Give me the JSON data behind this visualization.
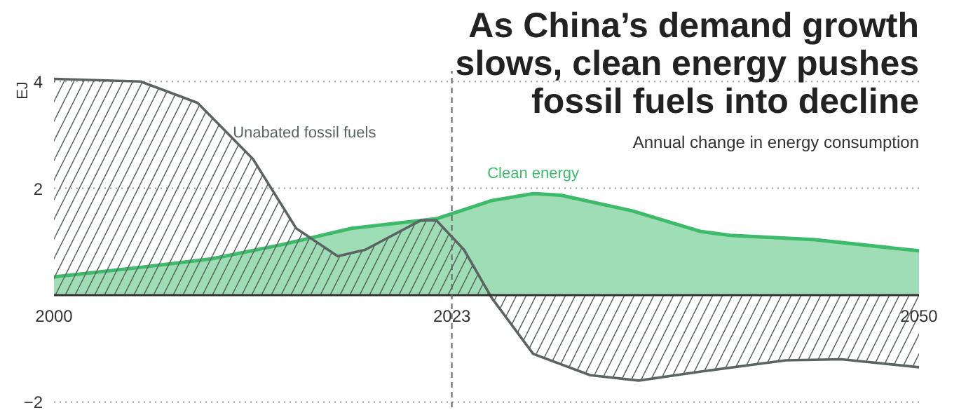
{
  "chart_data": {
    "type": "area",
    "title": "As China’s demand growth slows, clean energy pushes fossil fuels into decline",
    "subtitle": "Annual change in energy consumption",
    "ylabel": "EJ",
    "xlim": [
      2000,
      2050
    ],
    "xticks": [
      2000,
      2023,
      2050
    ],
    "ylim": [
      -2.1,
      4.2
    ],
    "yticks": [
      4,
      2,
      -2
    ],
    "grid": "y",
    "ref_lines": [
      {
        "axis": "x",
        "value": 2023,
        "line_style": "dashed"
      }
    ],
    "series": [
      {
        "name": "Clean energy",
        "color": "#3dbb6b",
        "x": [
          2000,
          2005,
          2009.1,
          2013.1,
          2017.2,
          2022.1,
          2025.3,
          2027.7,
          2029.3,
          2033.4,
          2037.4,
          2039.1,
          2043.9,
          2050
        ],
        "values": [
          0.34,
          0.52,
          0.68,
          0.94,
          1.25,
          1.43,
          1.77,
          1.9,
          1.87,
          1.58,
          1.19,
          1.12,
          1.04,
          0.83
        ]
      },
      {
        "name": "Unabated fossil fuels",
        "color": "#5b6463",
        "x": [
          2000,
          2005,
          2008.3,
          2011.5,
          2014,
          2016.4,
          2018,
          2021.2,
          2022.1,
          2023.7,
          2025.3,
          2027.7,
          2031,
          2033.8,
          2037.4,
          2042.3,
          2045.5,
          2050
        ],
        "values": [
          4.05,
          4.0,
          3.6,
          2.55,
          1.25,
          0.73,
          0.85,
          1.4,
          1.4,
          0.85,
          -0.05,
          -1.1,
          -1.5,
          -1.6,
          -1.43,
          -1.22,
          -1.2,
          -1.35
        ]
      }
    ]
  }
}
